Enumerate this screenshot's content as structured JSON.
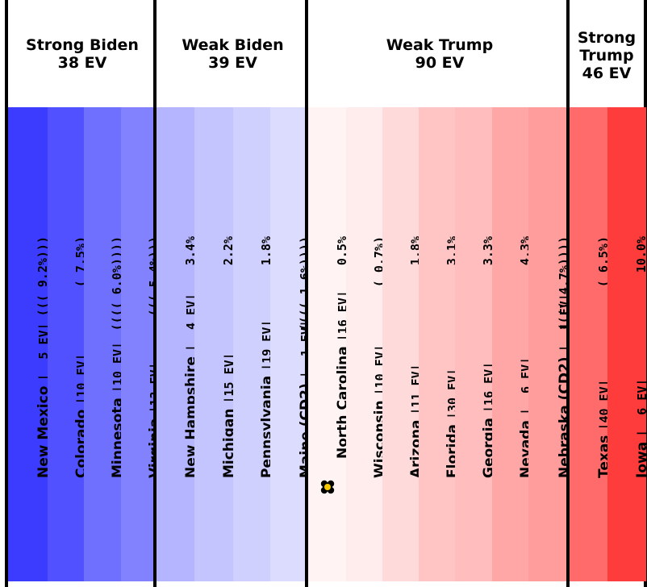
{
  "groups": [
    {
      "id": "strong-biden",
      "title": "Strong Biden",
      "ev": "38 EV",
      "states": [
        {
          "name": "New Mexico",
          "ev_label": "|  5 EV|",
          "pct_label": "((( 9.2%)))",
          "color": "#3c3cff"
        },
        {
          "name": "Colorado",
          "ev_label": "|10 EV|",
          "pct_label": "( 7.5%)",
          "color": "#5151ff"
        },
        {
          "name": "Minnesota",
          "ev_label": "|10 EV|",
          "pct_label": "(((( 6.0%))))",
          "color": "#7070ff"
        },
        {
          "name": "Virginia",
          "ev_label": "|13 EV|",
          "pct_label": "((( 5.4%)))",
          "color": "#8282ff"
        }
      ]
    },
    {
      "id": "weak-biden",
      "title": "Weak Biden",
      "ev": "39 EV",
      "states": [
        {
          "name": "New Hampshire",
          "ev_label": "|  4 EV|",
          "pct_label": "3.4%",
          "color": "#b4b4ff"
        },
        {
          "name": "Michigan",
          "ev_label": "|15 EV|",
          "pct_label": "2.2%",
          "color": "#c4c4ff"
        },
        {
          "name": "Pennsylvania",
          "ev_label": "|19 EV|",
          "pct_label": "1.8%",
          "color": "#d0d0ff"
        },
        {
          "name": "Maine (CD2)",
          "ev_label": "|  1 EV|",
          "pct_label": "(((( 1.6%))))",
          "color": "#dcdcff"
        }
      ]
    },
    {
      "id": "weak-trump",
      "title": "Weak Trump",
      "ev": "90 EV",
      "states": [
        {
          "name": "North Carolina",
          "ev_label": "|16 EV|",
          "pct_label": "0.5%",
          "color": "#fff3f3",
          "tipping_point": true
        },
        {
          "name": "Wisconsin",
          "ev_label": "|10 EV|",
          "pct_label": "( 0.7%)",
          "color": "#ffecec"
        },
        {
          "name": "Arizona",
          "ev_label": "|11 EV|",
          "pct_label": "1.8%",
          "color": "#ffdada"
        },
        {
          "name": "Florida",
          "ev_label": "|30 EV|",
          "pct_label": "3.1%",
          "color": "#ffc4c4"
        },
        {
          "name": "Georgia",
          "ev_label": "|16 EV|",
          "pct_label": "3.3%",
          "color": "#ffbdbd"
        },
        {
          "name": "Nevada",
          "ev_label": "|  6 EV|",
          "pct_label": "4.3%",
          "color": "#ffa6a6"
        },
        {
          "name": "Nebraska (CD2)",
          "ev_label": "|  1 EV|",
          "pct_label": "(((( 4.7%))))",
          "color": "#ff9c9c"
        }
      ]
    },
    {
      "id": "strong-trump",
      "title": "Strong Trump",
      "title_lines": [
        "Strong",
        "Trump"
      ],
      "ev": "46 EV",
      "states": [
        {
          "name": "Texas",
          "ev_label": "|40 EV|",
          "pct_label": "( 6.5%)",
          "color": "#ff6a6a"
        },
        {
          "name": "Iowa",
          "ev_label": "|  6 EV|",
          "pct_label": "10.0%",
          "color": "#ff3c3c"
        }
      ]
    }
  ],
  "colors": {
    "border": "#000000",
    "flower_petals": "#000000",
    "flower_center": "#f5c800"
  },
  "icons": {
    "tipping_point": "flower-icon"
  }
}
